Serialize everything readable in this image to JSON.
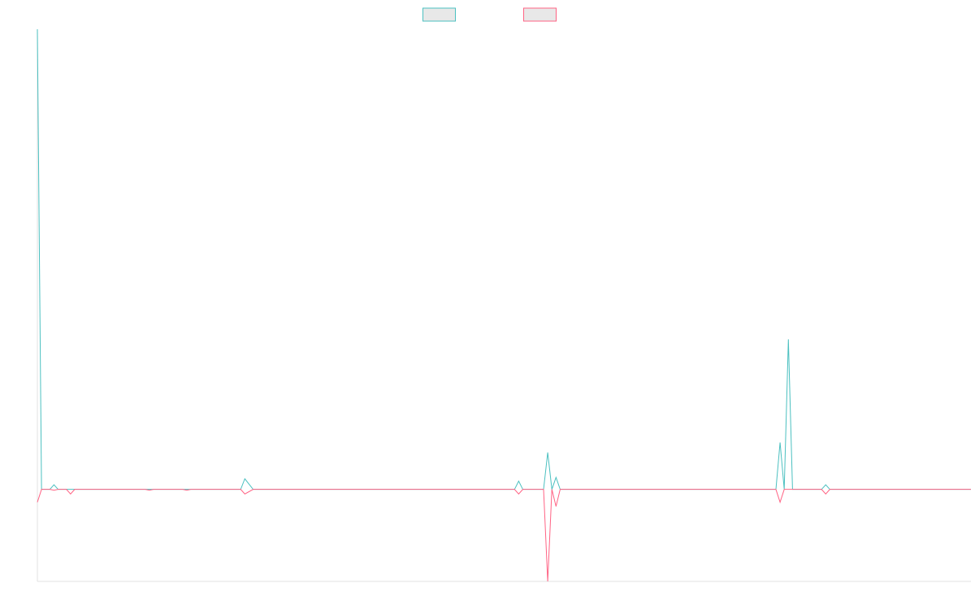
{
  "chart_data": {
    "type": "line",
    "x": [
      0,
      1,
      3,
      4,
      5,
      7,
      8,
      9,
      26,
      27,
      28,
      35,
      36,
      37,
      49,
      50,
      52,
      115,
      116,
      117,
      122,
      123,
      124,
      125,
      126,
      178,
      179,
      180,
      181,
      182,
      189,
      190,
      191,
      225
    ],
    "xlim": [
      0,
      225
    ],
    "ylim": [
      -20,
      100
    ],
    "series": [
      {
        "color": "#4bc0c0",
        "values": [
          100,
          0,
          0,
          1,
          0,
          0,
          0,
          0,
          0,
          0,
          0,
          0,
          0,
          0,
          0,
          2.3,
          0,
          0,
          1.8,
          0,
          0,
          8,
          0,
          2.6,
          0,
          0,
          10.2,
          0,
          32.6,
          0,
          0,
          1,
          0,
          0
        ]
      },
      {
        "color": "#ff6384",
        "values": [
          -2.8,
          0,
          0,
          -0.2,
          0,
          0,
          -1,
          0,
          0,
          -0.2,
          0,
          0,
          -0.2,
          0,
          0,
          -1,
          0,
          0,
          -1,
          0,
          0,
          -20,
          0,
          -3.7,
          0,
          0,
          -2.8,
          0,
          0,
          0,
          0,
          -1,
          0,
          0
        ]
      }
    ]
  }
}
